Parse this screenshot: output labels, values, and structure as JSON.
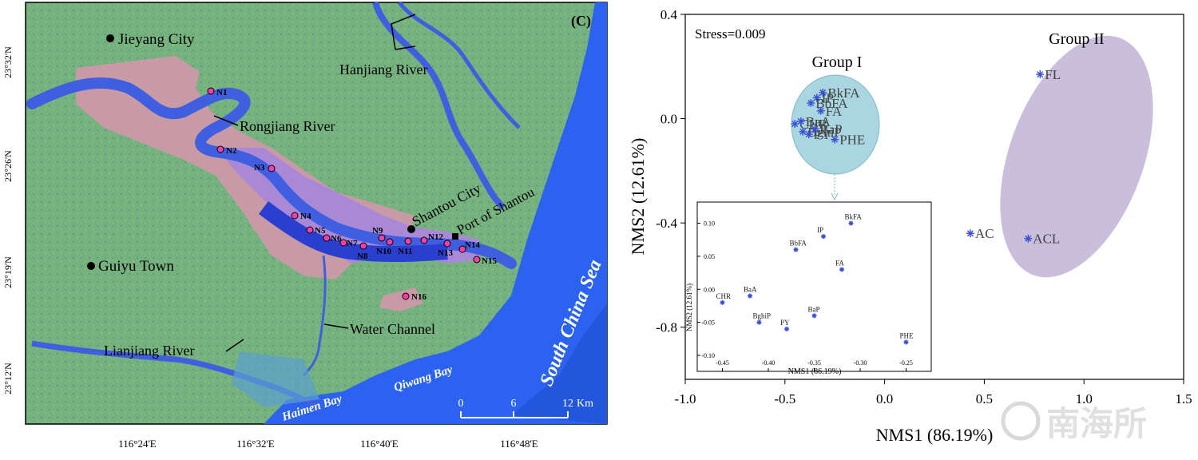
{
  "map": {
    "panel_label": "(C)",
    "lat_labels": [
      "23°32'N",
      "23°26'N",
      "23°19'N",
      "23°12'N"
    ],
    "lon_labels": [
      "116°24'E",
      "116°32'E",
      "116°40'E",
      "116°48'E"
    ],
    "places": {
      "jieyang": "Jieyang City",
      "guiyu": "Guiyu Town",
      "shantou": "Shantou City",
      "port": "Port of Shantou"
    },
    "water_labels": {
      "hanjiang": "Hanjiang River",
      "rongjiang": "Rongjiang River",
      "water_channel": "Water Channel",
      "lianjiang": "Lianjiang River",
      "south_china_sea": "South China Sea",
      "qiwang_bay": "Qiwang Bay",
      "haimen_bay": "Haimen Bay"
    },
    "sites": [
      "N1",
      "N2",
      "N3",
      "N4",
      "N5",
      "N6",
      "N7",
      "N8",
      "N9",
      "N10",
      "N11",
      "N12",
      "N13",
      "N14",
      "N15",
      "N16"
    ],
    "scale_bar": {
      "ticks": [
        "0",
        "6",
        "12"
      ],
      "unit": "Km"
    },
    "colors": {
      "land": "#6fae7c",
      "river": "#3f5fe0",
      "sea": "#2b63f0",
      "pink_region": "#c79aa6",
      "purple_region": "#a989d6",
      "site": "#ff3fa3"
    }
  },
  "chart_data": {
    "type": "scatter",
    "annotation": "Stress=0.009",
    "xlabel": "NMS1 (86.19%)",
    "ylabel": "NMS2 (12.61%)",
    "xlim": [
      -1.0,
      1.5
    ],
    "ylim": [
      -1.0,
      0.4
    ],
    "xticks": [
      "-1.0",
      "-0.5",
      "0.0",
      "0.5",
      "1.0",
      "1.5"
    ],
    "yticks": [
      "0.4",
      "0.0",
      "-0.4",
      "-0.8"
    ],
    "groups": [
      {
        "name": "Group I",
        "color": "#a9d6e0"
      },
      {
        "name": "Group II",
        "color": "#c9bfdd"
      }
    ],
    "points": [
      {
        "label": "BkFA",
        "x": -0.31,
        "y": 0.1
      },
      {
        "label": "IP",
        "x": -0.34,
        "y": 0.08
      },
      {
        "label": "BbFA",
        "x": -0.37,
        "y": 0.06
      },
      {
        "label": "FA",
        "x": -0.32,
        "y": 0.03
      },
      {
        "label": "CHR",
        "x": -0.45,
        "y": -0.02
      },
      {
        "label": "BaA",
        "x": -0.42,
        "y": -0.01
      },
      {
        "label": "BghiP",
        "x": -0.41,
        "y": -0.05
      },
      {
        "label": "PY",
        "x": -0.38,
        "y": -0.06
      },
      {
        "label": "BaP",
        "x": -0.35,
        "y": -0.04
      },
      {
        "label": "PHE",
        "x": -0.25,
        "y": -0.08
      },
      {
        "label": "FL",
        "x": 0.78,
        "y": 0.17
      },
      {
        "label": "AC",
        "x": 0.43,
        "y": -0.44
      },
      {
        "label": "ACL",
        "x": 0.72,
        "y": -0.46
      }
    ],
    "inset": {
      "xlabel": "NMS1 (86.19%)",
      "ylabel": "NMS2 (12.61%)",
      "xlim": [
        -0.46,
        -0.24
      ],
      "ylim": [
        -0.1,
        0.12
      ],
      "xticks": [
        "-0.45",
        "-0.40",
        "-0.35",
        "-0.30",
        "-0.25"
      ],
      "yticks": [
        "0.10",
        "0.05",
        "0.00",
        "-0.05",
        "-0.10"
      ]
    }
  },
  "watermark": "南海所"
}
